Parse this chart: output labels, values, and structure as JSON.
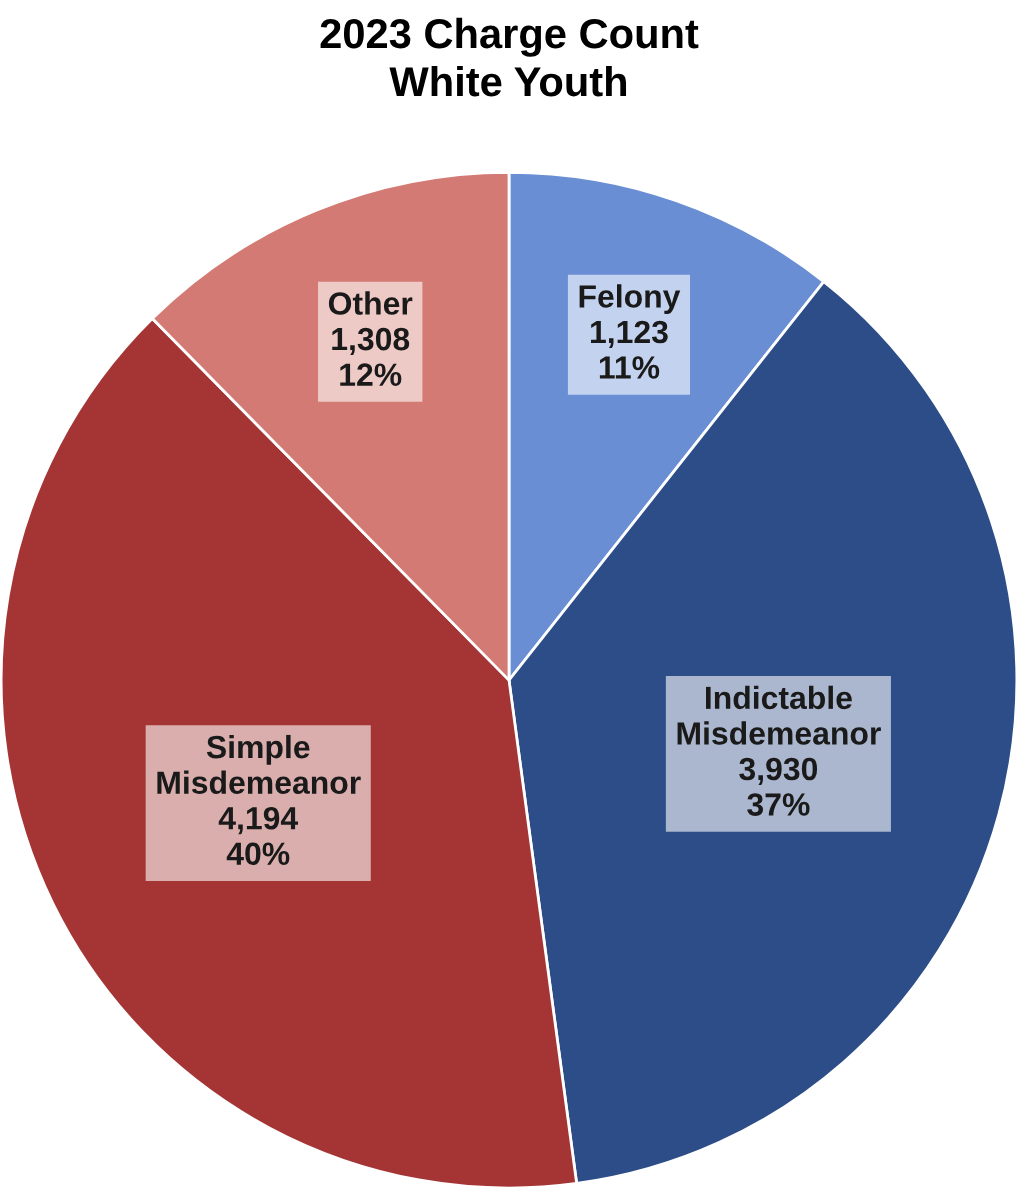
{
  "chart_data": {
    "type": "pie",
    "title": "2023 Charge Count\nWhite Youth",
    "categories": [
      "Felony",
      "Indictable Misdemeanor",
      "Simple Misdemeanor",
      "Other"
    ],
    "values": [
      1123,
      3930,
      4194,
      1308
    ],
    "value_labels": [
      "1,123\n11%",
      "3,930\n37%",
      "4,194\n40%",
      "1,308\n12%"
    ],
    "colors": [
      "#6a8ed4",
      "#2d4d88",
      "#a53535",
      "#d47a74"
    ],
    "legend": false
  }
}
